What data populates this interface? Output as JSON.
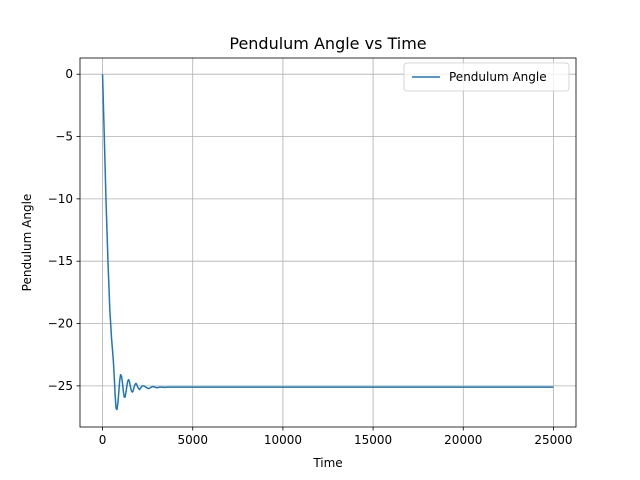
{
  "chart_data": {
    "type": "line",
    "title": "Pendulum Angle vs Time",
    "xlabel": "Time",
    "ylabel": "Pendulum Angle",
    "xlim": [
      -1250,
      26250
    ],
    "ylim": [
      -28.3,
      1.3
    ],
    "xticks": [
      0,
      5000,
      10000,
      15000,
      20000,
      25000
    ],
    "yticks": [
      0,
      -5,
      -10,
      -15,
      -20,
      -25
    ],
    "grid": true,
    "legend": {
      "position": "top-right"
    },
    "series": [
      {
        "name": "Pendulum Angle",
        "color": "#1f77b4",
        "x": [
          0,
          100,
          200,
          300,
          400,
          500,
          550,
          600,
          650,
          700,
          750,
          800,
          850,
          900,
          950,
          1000,
          1050,
          1100,
          1150,
          1200,
          1250,
          1300,
          1350,
          1400,
          1450,
          1500,
          1550,
          1600,
          1650,
          1700,
          1750,
          1800,
          1850,
          1900,
          1950,
          2000,
          2050,
          2100,
          2150,
          2200,
          2300,
          2400,
          2500,
          2600,
          2700,
          2800,
          2900,
          3000,
          3100,
          3200,
          3300,
          3400,
          3500,
          3600,
          3700,
          3800,
          3900,
          4000,
          4500,
          5000,
          10000,
          15000,
          20000,
          25000
        ],
        "y": [
          0,
          -5.2,
          -10.5,
          -15.0,
          -18.8,
          -21.2,
          -22.1,
          -23.0,
          -24.3,
          -25.8,
          -26.8,
          -26.9,
          -26.4,
          -25.5,
          -24.6,
          -24.1,
          -24.2,
          -24.7,
          -25.4,
          -25.9,
          -25.9,
          -25.5,
          -25.0,
          -24.6,
          -24.5,
          -24.7,
          -25.1,
          -25.4,
          -25.5,
          -25.4,
          -25.1,
          -24.9,
          -24.8,
          -24.9,
          -25.1,
          -25.2,
          -25.3,
          -25.2,
          -25.1,
          -25.0,
          -25.0,
          -25.1,
          -25.2,
          -25.2,
          -25.1,
          -25.05,
          -25.1,
          -25.15,
          -25.12,
          -25.1,
          -25.1,
          -25.12,
          -25.12,
          -25.1,
          -25.1,
          -25.1,
          -25.1,
          -25.1,
          -25.1,
          -25.1,
          -25.1,
          -25.1,
          -25.1,
          -25.1
        ]
      }
    ]
  }
}
